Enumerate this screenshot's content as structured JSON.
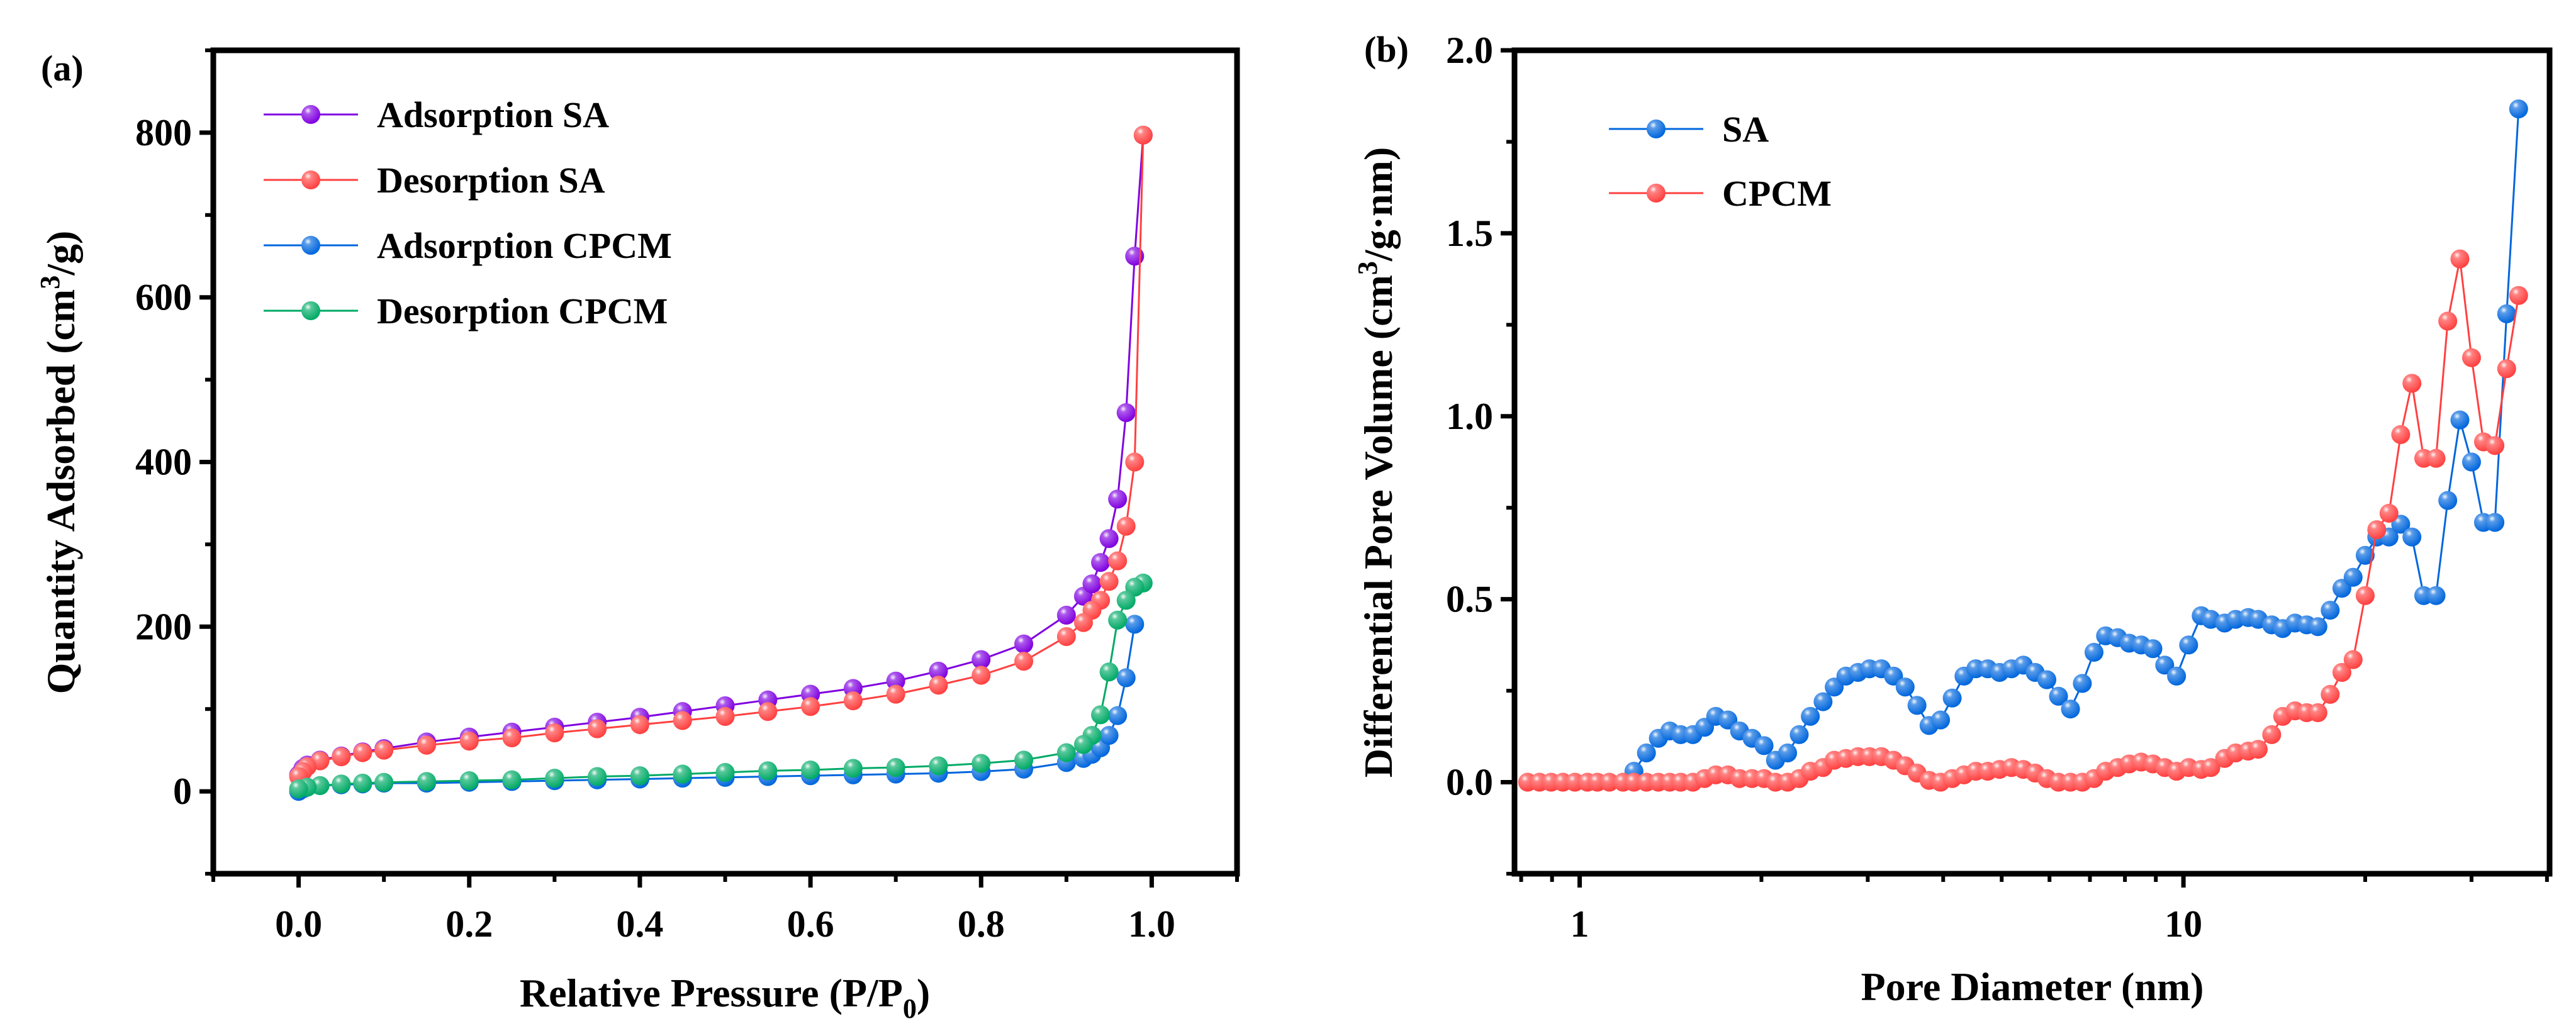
{
  "chart_data": [
    {
      "panel_label": "(a)",
      "type": "line",
      "xlabel": "Relative Pressure (P/P",
      "xlabel_sub": "0",
      "xlabel_end": ")",
      "ylabel": "Quantity Adsorbed (cm",
      "ylabel_sup": "3",
      "ylabel_end": "/g)",
      "xlim": [
        -0.1,
        1.1
      ],
      "ylim": [
        -100,
        900
      ],
      "xticks": [
        0.0,
        0.2,
        0.4,
        0.6,
        0.8,
        1.0
      ],
      "xtick_labels": [
        "0.0",
        "0.2",
        "0.4",
        "0.6",
        "0.8",
        "1.0"
      ],
      "yticks": [
        0,
        200,
        400,
        600,
        800
      ],
      "ytick_labels": [
        "0",
        "200",
        "400",
        "600",
        "800"
      ],
      "grid": false,
      "legend_position": "top-left",
      "series": [
        {
          "name": "Adsorption SA",
          "color": "#8000e0",
          "x": [
            0,
            0.005,
            0.01,
            0.025,
            0.05,
            0.075,
            0.1,
            0.15,
            0.2,
            0.25,
            0.3,
            0.35,
            0.4,
            0.45,
            0.5,
            0.55,
            0.6,
            0.65,
            0.7,
            0.75,
            0.8,
            0.85,
            0.9,
            0.92,
            0.93,
            0.94,
            0.95,
            0.96,
            0.97,
            0.98,
            0.99
          ],
          "y": [
            20,
            28,
            32,
            38,
            43,
            48,
            52,
            60,
            66,
            72,
            78,
            84,
            90,
            97,
            104,
            111,
            118,
            125,
            134,
            146,
            160,
            179,
            214,
            237,
            252,
            278,
            307,
            355,
            460,
            650,
            797
          ]
        },
        {
          "name": "Desorption SA",
          "color": "#ff4040",
          "x": [
            0.99,
            0.98,
            0.97,
            0.96,
            0.95,
            0.94,
            0.93,
            0.92,
            0.9,
            0.85,
            0.8,
            0.75,
            0.7,
            0.65,
            0.6,
            0.55,
            0.5,
            0.45,
            0.4,
            0.35,
            0.3,
            0.25,
            0.2,
            0.15,
            0.1,
            0.075,
            0.05,
            0.025,
            0.01,
            0.005,
            0
          ],
          "y": [
            797,
            400,
            322,
            280,
            255,
            232,
            220,
            205,
            188,
            158,
            141,
            129,
            118,
            110,
            103,
            97,
            91,
            86,
            81,
            76,
            71,
            65,
            61,
            56,
            50,
            47,
            42,
            37,
            30,
            24,
            18
          ]
        },
        {
          "name": "Adsorption CPCM",
          "color": "#0066dd",
          "x": [
            0,
            0.005,
            0.01,
            0.025,
            0.05,
            0.075,
            0.1,
            0.15,
            0.2,
            0.25,
            0.3,
            0.35,
            0.4,
            0.45,
            0.5,
            0.55,
            0.6,
            0.65,
            0.7,
            0.75,
            0.8,
            0.85,
            0.9,
            0.92,
            0.93,
            0.94,
            0.95,
            0.96,
            0.97,
            0.98
          ],
          "y": [
            0,
            3,
            5,
            7,
            8,
            9,
            10,
            10,
            11,
            12,
            13,
            14,
            15,
            16,
            17,
            18,
            19,
            20,
            21,
            22,
            24,
            27,
            35,
            40,
            45,
            53,
            68,
            92,
            138,
            203
          ]
        },
        {
          "name": "Desorption CPCM",
          "color": "#00aa66",
          "x": [
            0.99,
            0.98,
            0.97,
            0.96,
            0.95,
            0.94,
            0.93,
            0.92,
            0.9,
            0.85,
            0.8,
            0.75,
            0.7,
            0.65,
            0.6,
            0.55,
            0.5,
            0.45,
            0.4,
            0.35,
            0.3,
            0.25,
            0.2,
            0.15,
            0.1,
            0.075,
            0.05,
            0.025,
            0.01,
            0
          ],
          "y": [
            253,
            248,
            232,
            208,
            145,
            93,
            68,
            57,
            47,
            38,
            34,
            31,
            29,
            28,
            26,
            25,
            23,
            21,
            19,
            18,
            16,
            14,
            13,
            12,
            11,
            10,
            9,
            7,
            5,
            3
          ]
        }
      ]
    },
    {
      "panel_label": "(b)",
      "type": "line",
      "xscale": "log",
      "xlabel": "Pore Diameter (nm)",
      "ylabel": "Differential Pore Volume (cm",
      "ylabel_sup": "3",
      "ylabel_end": "/g·nm)",
      "xlim": [
        0.78,
        40.4
      ],
      "ylim": [
        -0.25,
        2.0
      ],
      "xticks": [
        1,
        10
      ],
      "xtick_labels": [
        "1",
        "10"
      ],
      "yticks": [
        0.0,
        0.5,
        1.0,
        1.5,
        2.0
      ],
      "ytick_labels": [
        "0.0",
        "0.5",
        "1.0",
        "1.5",
        "2.0"
      ],
      "grid": false,
      "legend_position": "top-left",
      "x": [
        0.82,
        0.858,
        0.897,
        0.938,
        0.982,
        1.03,
        1.07,
        1.12,
        1.18,
        1.23,
        1.29,
        1.35,
        1.41,
        1.47,
        1.54,
        1.61,
        1.68,
        1.76,
        1.84,
        1.93,
        2.02,
        2.11,
        2.21,
        2.31,
        2.41,
        2.53,
        2.64,
        2.76,
        2.89,
        3.02,
        3.16,
        3.31,
        3.46,
        3.62,
        3.79,
        3.96,
        4.14,
        4.33,
        4.53,
        4.74,
        4.96,
        5.19,
        5.43,
        5.68,
        5.94,
        6.21,
        6.5,
        6.8,
        7.11,
        7.43,
        7.78,
        8.13,
        8.51,
        8.9,
        9.31,
        9.74,
        10.2,
        10.7,
        11.1,
        11.7,
        12.2,
        12.8,
        13.3,
        14.0,
        14.6,
        15.3,
        16.0,
        16.7,
        17.5,
        18.3,
        19.1,
        20.0,
        20.9,
        21.9,
        22.9,
        23.9,
        25.0,
        26.2,
        27.4,
        28.7,
        30.0,
        31.4,
        32.8,
        34.3,
        35.9
      ],
      "series": [
        {
          "name": "SA",
          "color": "#0066dd",
          "y": [
            null,
            null,
            null,
            null,
            null,
            null,
            null,
            null,
            null,
            0.03,
            0.08,
            0.12,
            0.14,
            0.13,
            0.13,
            0.15,
            0.18,
            0.17,
            0.14,
            0.12,
            0.1,
            0.06,
            0.08,
            0.13,
            0.18,
            0.22,
            0.26,
            0.29,
            0.3,
            0.31,
            0.31,
            0.29,
            0.26,
            0.21,
            0.155,
            0.17,
            0.23,
            0.29,
            0.31,
            0.31,
            0.3,
            0.31,
            0.32,
            0.3,
            0.28,
            0.235,
            0.2,
            0.27,
            0.355,
            0.4,
            0.395,
            0.38,
            0.375,
            0.365,
            0.32,
            0.29,
            0.375,
            0.455,
            0.445,
            0.435,
            0.445,
            0.45,
            0.445,
            0.43,
            0.42,
            0.435,
            0.43,
            0.425,
            0.47,
            0.53,
            0.56,
            0.62,
            0.67,
            0.67,
            0.705,
            0.67,
            0.51,
            0.51,
            0.77,
            0.99,
            0.875,
            0.71,
            0.71,
            1.28,
            1.84
          ]
        },
        {
          "name": "CPCM",
          "color": "#ff4040",
          "y": [
            0,
            0,
            0,
            0,
            0,
            0,
            0,
            0,
            0,
            0,
            0,
            0,
            0,
            0,
            0,
            0.01,
            0.02,
            0.02,
            0.01,
            0.01,
            0.01,
            0,
            0,
            0.01,
            0.03,
            0.04,
            0.06,
            0.065,
            0.07,
            0.07,
            0.07,
            0.06,
            0.045,
            0.025,
            0.005,
            0,
            0.01,
            0.02,
            0.03,
            0.03,
            0.035,
            0.04,
            0.035,
            0.025,
            0.01,
            0,
            0,
            0,
            0.01,
            0.03,
            0.04,
            0.05,
            0.055,
            0.05,
            0.04,
            0.03,
            0.04,
            0.035,
            0.04,
            0.065,
            0.08,
            0.085,
            0.09,
            0.13,
            0.18,
            0.195,
            0.19,
            0.19,
            0.24,
            0.3,
            0.335,
            0.51,
            0.69,
            0.735,
            0.95,
            1.09,
            0.885,
            0.885,
            1.26,
            1.43,
            1.16,
            0.93,
            0.92,
            1.13,
            1.33
          ]
        }
      ]
    }
  ]
}
